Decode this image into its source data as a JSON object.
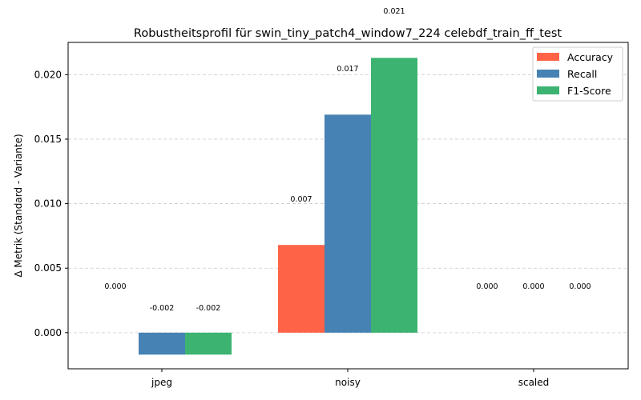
{
  "chart_data": {
    "type": "bar",
    "title": "Robustheitsprofil für swin_tiny_patch4_window7_224 celebdf_train_ff_test",
    "xlabel": "",
    "ylabel": "Δ Metrik (Standard - Variante)",
    "categories": [
      "jpeg",
      "noisy",
      "scaled"
    ],
    "series": [
      {
        "name": "Accuracy",
        "color": "#ff6347",
        "values": [
          0.0,
          0.0068,
          0.0
        ]
      },
      {
        "name": "Recall",
        "color": "#4682b4",
        "values": [
          -0.0017,
          0.0169,
          0.0
        ]
      },
      {
        "name": "F1-Score",
        "color": "#3cb371",
        "values": [
          -0.0017,
          0.0213,
          0.0
        ]
      }
    ],
    "data_labels": [
      [
        "0.000",
        "-0.002",
        "-0.002"
      ],
      [
        "0.007",
        "0.017",
        "0.021"
      ],
      [
        "0.000",
        "0.000",
        "0.000"
      ]
    ],
    "ylim": [
      -0.0028,
      0.0225
    ],
    "yticks": [
      0.0,
      0.005,
      0.01,
      0.015,
      0.02
    ],
    "ytick_labels": [
      "0.000",
      "0.005",
      "0.010",
      "0.015",
      "0.020"
    ],
    "grid": "y-dashed",
    "legend_position": "top-right"
  }
}
